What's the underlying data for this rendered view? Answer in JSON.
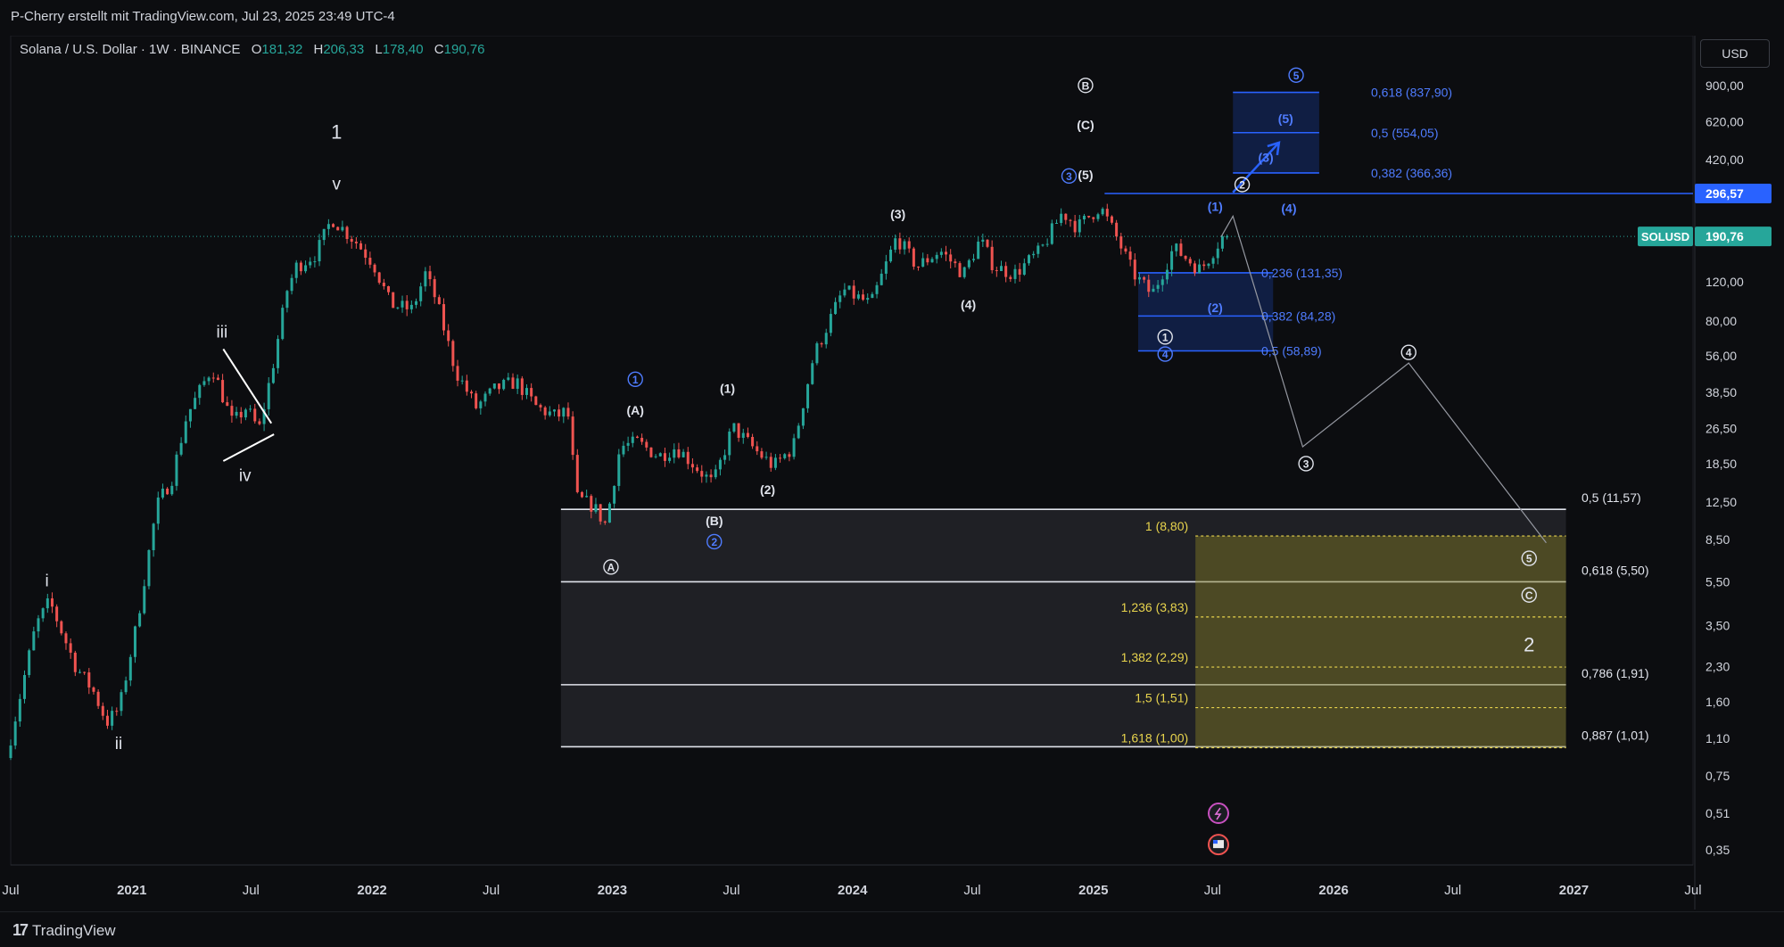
{
  "attribution": "P-Cherry erstellt mit TradingView.com, Jul 23, 2025 23:49 UTC-4",
  "symbol_title": "Solana / U.S. Dollar · 1W · BINANCE",
  "ohlc": {
    "o_label": "O",
    "o": "181,32",
    "h_label": "H",
    "h": "206,33",
    "l_label": "L",
    "l": "178,40",
    "c_label": "C",
    "c": "190,76"
  },
  "currency": "USD",
  "brand": "TradingView",
  "colors": {
    "up": "#26a69a",
    "down": "#ef5350",
    "blue": "#2962ff",
    "blue_text": "#4f7cff",
    "fib_yellow": "#e8d44d",
    "white": "#e0e3eb",
    "current": "#26a69a"
  },
  "chart_data": {
    "type": "candlestick",
    "y_scale": "log",
    "ylim": [
      0.3,
      1500
    ],
    "x_range": [
      "2020-07-01",
      "2027-07-01"
    ],
    "y_ticks": [
      {
        "v": 900,
        "label": "900,00"
      },
      {
        "v": 620,
        "label": "620,00"
      },
      {
        "v": 420,
        "label": "420,00"
      },
      {
        "v": 120,
        "label": "120,00"
      },
      {
        "v": 80,
        "label": "80,00"
      },
      {
        "v": 56,
        "label": "56,00"
      },
      {
        "v": 38.5,
        "label": "38,50"
      },
      {
        "v": 26.5,
        "label": "26,50"
      },
      {
        "v": 18.5,
        "label": "18,50"
      },
      {
        "v": 12.5,
        "label": "12,50"
      },
      {
        "v": 8.5,
        "label": "8,50"
      },
      {
        "v": 5.5,
        "label": "5,50"
      },
      {
        "v": 3.5,
        "label": "3,50"
      },
      {
        "v": 2.3,
        "label": "2,30"
      },
      {
        "v": 1.6,
        "label": "1,60"
      },
      {
        "v": 1.1,
        "label": "1,10"
      },
      {
        "v": 0.75,
        "label": "0,75"
      },
      {
        "v": 0.51,
        "label": "0,51"
      },
      {
        "v": 0.35,
        "label": "0,35"
      }
    ],
    "x_ticks": [
      {
        "d": "2020-07-01",
        "label": "Jul"
      },
      {
        "d": "2021-01-01",
        "label": "2021"
      },
      {
        "d": "2021-07-01",
        "label": "Jul"
      },
      {
        "d": "2022-01-01",
        "label": "2022"
      },
      {
        "d": "2022-07-01",
        "label": "Jul"
      },
      {
        "d": "2023-01-01",
        "label": "2023"
      },
      {
        "d": "2023-07-01",
        "label": "Jul"
      },
      {
        "d": "2024-01-01",
        "label": "2024"
      },
      {
        "d": "2024-07-01",
        "label": "Jul"
      },
      {
        "d": "2025-01-01",
        "label": "2025"
      },
      {
        "d": "2025-07-01",
        "label": "Jul"
      },
      {
        "d": "2026-01-01",
        "label": "2026"
      },
      {
        "d": "2026-07-01",
        "label": "Jul"
      },
      {
        "d": "2027-01-01",
        "label": "2027"
      },
      {
        "d": "2027-07-01",
        "label": "Jul"
      }
    ],
    "price_path": [
      [
        "2020-07-01",
        0.9
      ],
      [
        "2020-08-15",
        3.5
      ],
      [
        "2020-09-05",
        4.5
      ],
      [
        "2020-10-15",
        2.3
      ],
      [
        "2020-11-10",
        1.8
      ],
      [
        "2020-12-01",
        1.3
      ],
      [
        "2020-12-20",
        1.5
      ],
      [
        "2021-01-15",
        3.5
      ],
      [
        "2021-02-15",
        12
      ],
      [
        "2021-03-10",
        16
      ],
      [
        "2021-04-01",
        30
      ],
      [
        "2021-05-10",
        50
      ],
      [
        "2021-06-10",
        28
      ],
      [
        "2021-07-01",
        33
      ],
      [
        "2021-07-20",
        26
      ],
      [
        "2021-08-10",
        50
      ],
      [
        "2021-09-01",
        110
      ],
      [
        "2021-09-15",
        140
      ],
      [
        "2021-10-15",
        160
      ],
      [
        "2021-11-08",
        230
      ],
      [
        "2021-12-15",
        180
      ],
      [
        "2022-01-10",
        145
      ],
      [
        "2022-02-05",
        95
      ],
      [
        "2022-03-10",
        90
      ],
      [
        "2022-03-30",
        130
      ],
      [
        "2022-04-15",
        100
      ],
      [
        "2022-05-15",
        48
      ],
      [
        "2022-06-15",
        33
      ],
      [
        "2022-07-15",
        40
      ],
      [
        "2022-08-15",
        43
      ],
      [
        "2022-09-15",
        33
      ],
      [
        "2022-10-15",
        30
      ],
      [
        "2022-11-01",
        32
      ],
      [
        "2022-11-15",
        13
      ],
      [
        "2022-12-10",
        12
      ],
      [
        "2022-12-29",
        9.9
      ],
      [
        "2023-01-20",
        22
      ],
      [
        "2023-02-15",
        23
      ],
      [
        "2023-03-20",
        20
      ],
      [
        "2023-04-15",
        22
      ],
      [
        "2023-06-10",
        15
      ],
      [
        "2023-07-10",
        27
      ],
      [
        "2023-08-15",
        21
      ],
      [
        "2023-09-10",
        18
      ],
      [
        "2023-10-10",
        22
      ],
      [
        "2023-11-10",
        56
      ],
      [
        "2023-12-25",
        110
      ],
      [
        "2024-02-05",
        95
      ],
      [
        "2024-03-15",
        190
      ],
      [
        "2024-04-15",
        140
      ],
      [
        "2024-05-20",
        165
      ],
      [
        "2024-06-25",
        130
      ],
      [
        "2024-07-20",
        185
      ],
      [
        "2024-08-10",
        140
      ],
      [
        "2024-09-10",
        130
      ],
      [
        "2024-10-20",
        165
      ],
      [
        "2024-11-22",
        245
      ],
      [
        "2024-12-15",
        210
      ],
      [
        "2025-01-18",
        260
      ],
      [
        "2025-02-10",
        195
      ],
      [
        "2025-03-10",
        130
      ],
      [
        "2025-04-07",
        105
      ],
      [
        "2025-05-10",
        170
      ],
      [
        "2025-06-20",
        135
      ],
      [
        "2025-07-23",
        190.76
      ]
    ],
    "current": {
      "value": 190.76,
      "label": "190,76",
      "ticker": "SOLUSD"
    },
    "high_level": {
      "value": 296.57,
      "label": "296,57"
    },
    "projection": [
      [
        "2025-07-14",
        190
      ],
      [
        "2025-08-01",
        235
      ],
      [
        "2025-11-15",
        22
      ],
      [
        "2026-04-25",
        52
      ],
      [
        "2026-11-20",
        8.2
      ]
    ],
    "upside_arrow": [
      [
        "2025-08-01",
        300
      ],
      [
        "2025-10-10",
        500
      ]
    ],
    "upper_box": {
      "x0": "2025-08-01",
      "x1": "2025-12-10",
      "levels": [
        {
          "v": 837.9,
          "label": "0,618 (837,90)"
        },
        {
          "v": 554.05,
          "label": "0,5 (554,05)"
        },
        {
          "v": 366.36,
          "label": "0,382 (366,36)"
        }
      ]
    },
    "mid_box": {
      "x0": "2025-03-10",
      "x1": "2025-10-01",
      "levels": [
        {
          "v": 131.35,
          "label": "0,236 (131,35)"
        },
        {
          "v": 84.28,
          "label": "0,382 (84,28)"
        },
        {
          "v": 58.89,
          "label": "0,5 (58,89)"
        }
      ]
    },
    "retracement_box": {
      "x0": "2022-10-15",
      "x1": "2026-12-20",
      "levels": [
        {
          "v": 11.57,
          "label": "0,5 (11,57)"
        },
        {
          "v": 5.5,
          "label": "0,618 (5,50)"
        },
        {
          "v": 1.91,
          "label": "0,786 (1,91)"
        },
        {
          "v": 1.01,
          "label": "0,887 (1,01)"
        }
      ]
    },
    "extension_box": {
      "x0": "2025-06-05",
      "x1": "2026-12-20",
      "levels": [
        {
          "v": 8.8,
          "label": "1 (8,80)"
        },
        {
          "v": 3.83,
          "label": "1,236 (3,83)"
        },
        {
          "v": 2.29,
          "label": "1,382 (2,29)"
        },
        {
          "v": 1.51,
          "label": "1,5 (1,51)"
        },
        {
          "v": 1.0,
          "label": "1,618 (1,00)"
        }
      ]
    },
    "triangle": [
      [
        [
          "2021-05-20",
          60
        ],
        [
          "2021-08-01",
          28
        ]
      ],
      [
        [
          "2021-05-20",
          19
        ],
        [
          "2021-08-05",
          25
        ]
      ]
    ],
    "wave_labels": [
      {
        "d": "2021-11-08",
        "v": 560,
        "t": "1",
        "style": "big",
        "c": "white"
      },
      {
        "d": "2021-11-08",
        "v": 330,
        "t": "v",
        "style": "roman",
        "c": "white"
      },
      {
        "d": "2020-08-25",
        "v": 5.6,
        "t": "i",
        "style": "roman",
        "c": "white"
      },
      {
        "d": "2020-12-12",
        "v": 1.05,
        "t": "ii",
        "style": "roman",
        "c": "white"
      },
      {
        "d": "2021-05-18",
        "v": 72,
        "t": "iii",
        "style": "roman",
        "c": "white"
      },
      {
        "d": "2021-06-22",
        "v": 16.5,
        "t": "iv",
        "style": "roman",
        "c": "white"
      },
      {
        "d": "2024-12-20",
        "v": 900,
        "t": "B",
        "style": "circle",
        "c": "white"
      },
      {
        "d": "2024-12-20",
        "v": 600,
        "t": "(C)",
        "style": "paren",
        "c": "white"
      },
      {
        "d": "2024-12-20",
        "v": 360,
        "t": "(5)",
        "style": "paren",
        "c": "white"
      },
      {
        "d": "2024-11-25",
        "v": 355,
        "t": "3",
        "style": "circle",
        "c": "blue"
      },
      {
        "d": "2024-03-10",
        "v": 240,
        "t": "(3)",
        "style": "paren",
        "c": "white"
      },
      {
        "d": "2024-06-25",
        "v": 95,
        "t": "(4)",
        "style": "paren",
        "c": "white"
      },
      {
        "d": "2023-02-05",
        "v": 44,
        "t": "1",
        "style": "circle",
        "c": "blue"
      },
      {
        "d": "2023-02-05",
        "v": 32,
        "t": "(A)",
        "style": "paren",
        "c": "white"
      },
      {
        "d": "2023-06-25",
        "v": 40,
        "t": "(1)",
        "style": "paren",
        "c": "white"
      },
      {
        "d": "2023-08-25",
        "v": 14.2,
        "t": "(2)",
        "style": "paren",
        "c": "white"
      },
      {
        "d": "2023-06-05",
        "v": 10.3,
        "t": "(B)",
        "style": "paren",
        "c": "white"
      },
      {
        "d": "2023-06-05",
        "v": 8.3,
        "t": "2",
        "style": "circle",
        "c": "blue"
      },
      {
        "d": "2022-12-30",
        "v": 6.4,
        "t": "A",
        "style": "circle",
        "c": "white"
      },
      {
        "d": "2025-04-20",
        "v": 68,
        "t": "1",
        "style": "circle",
        "c": "white"
      },
      {
        "d": "2025-04-20",
        "v": 57,
        "t": "4",
        "style": "circle",
        "c": "blue"
      },
      {
        "d": "2025-07-05",
        "v": 260,
        "t": "(1)",
        "style": "paren",
        "c": "blue"
      },
      {
        "d": "2025-07-05",
        "v": 92,
        "t": "(2)",
        "style": "paren",
        "c": "blue"
      },
      {
        "d": "2025-08-15",
        "v": 325,
        "t": "2",
        "style": "circle",
        "c": "white"
      },
      {
        "d": "2025-10-25",
        "v": 255,
        "t": "(4)",
        "style": "paren",
        "c": "blue"
      },
      {
        "d": "2025-09-20",
        "v": 430,
        "t": "(3)",
        "style": "paren",
        "c": "blue"
      },
      {
        "d": "2025-10-20",
        "v": 640,
        "t": "(5)",
        "style": "paren",
        "c": "blue"
      },
      {
        "d": "2025-11-05",
        "v": 1000,
        "t": "5",
        "style": "circle",
        "c": "blue"
      },
      {
        "d": "2025-11-20",
        "v": 18.5,
        "t": "3",
        "style": "circle",
        "c": "white"
      },
      {
        "d": "2026-04-25",
        "v": 58,
        "t": "4",
        "style": "circle",
        "c": "white"
      },
      {
        "d": "2026-10-25",
        "v": 7.0,
        "t": "5",
        "style": "circle",
        "c": "white"
      },
      {
        "d": "2026-10-25",
        "v": 4.8,
        "t": "C",
        "style": "circle",
        "c": "white"
      },
      {
        "d": "2026-10-25",
        "v": 2.9,
        "t": "2",
        "style": "big",
        "c": "white"
      }
    ],
    "events": [
      {
        "d": "2025-07-10",
        "v": 0.51,
        "icon": "lightning-icon"
      },
      {
        "d": "2025-07-10",
        "v": 0.37,
        "icon": "us-flag-icon"
      }
    ]
  }
}
